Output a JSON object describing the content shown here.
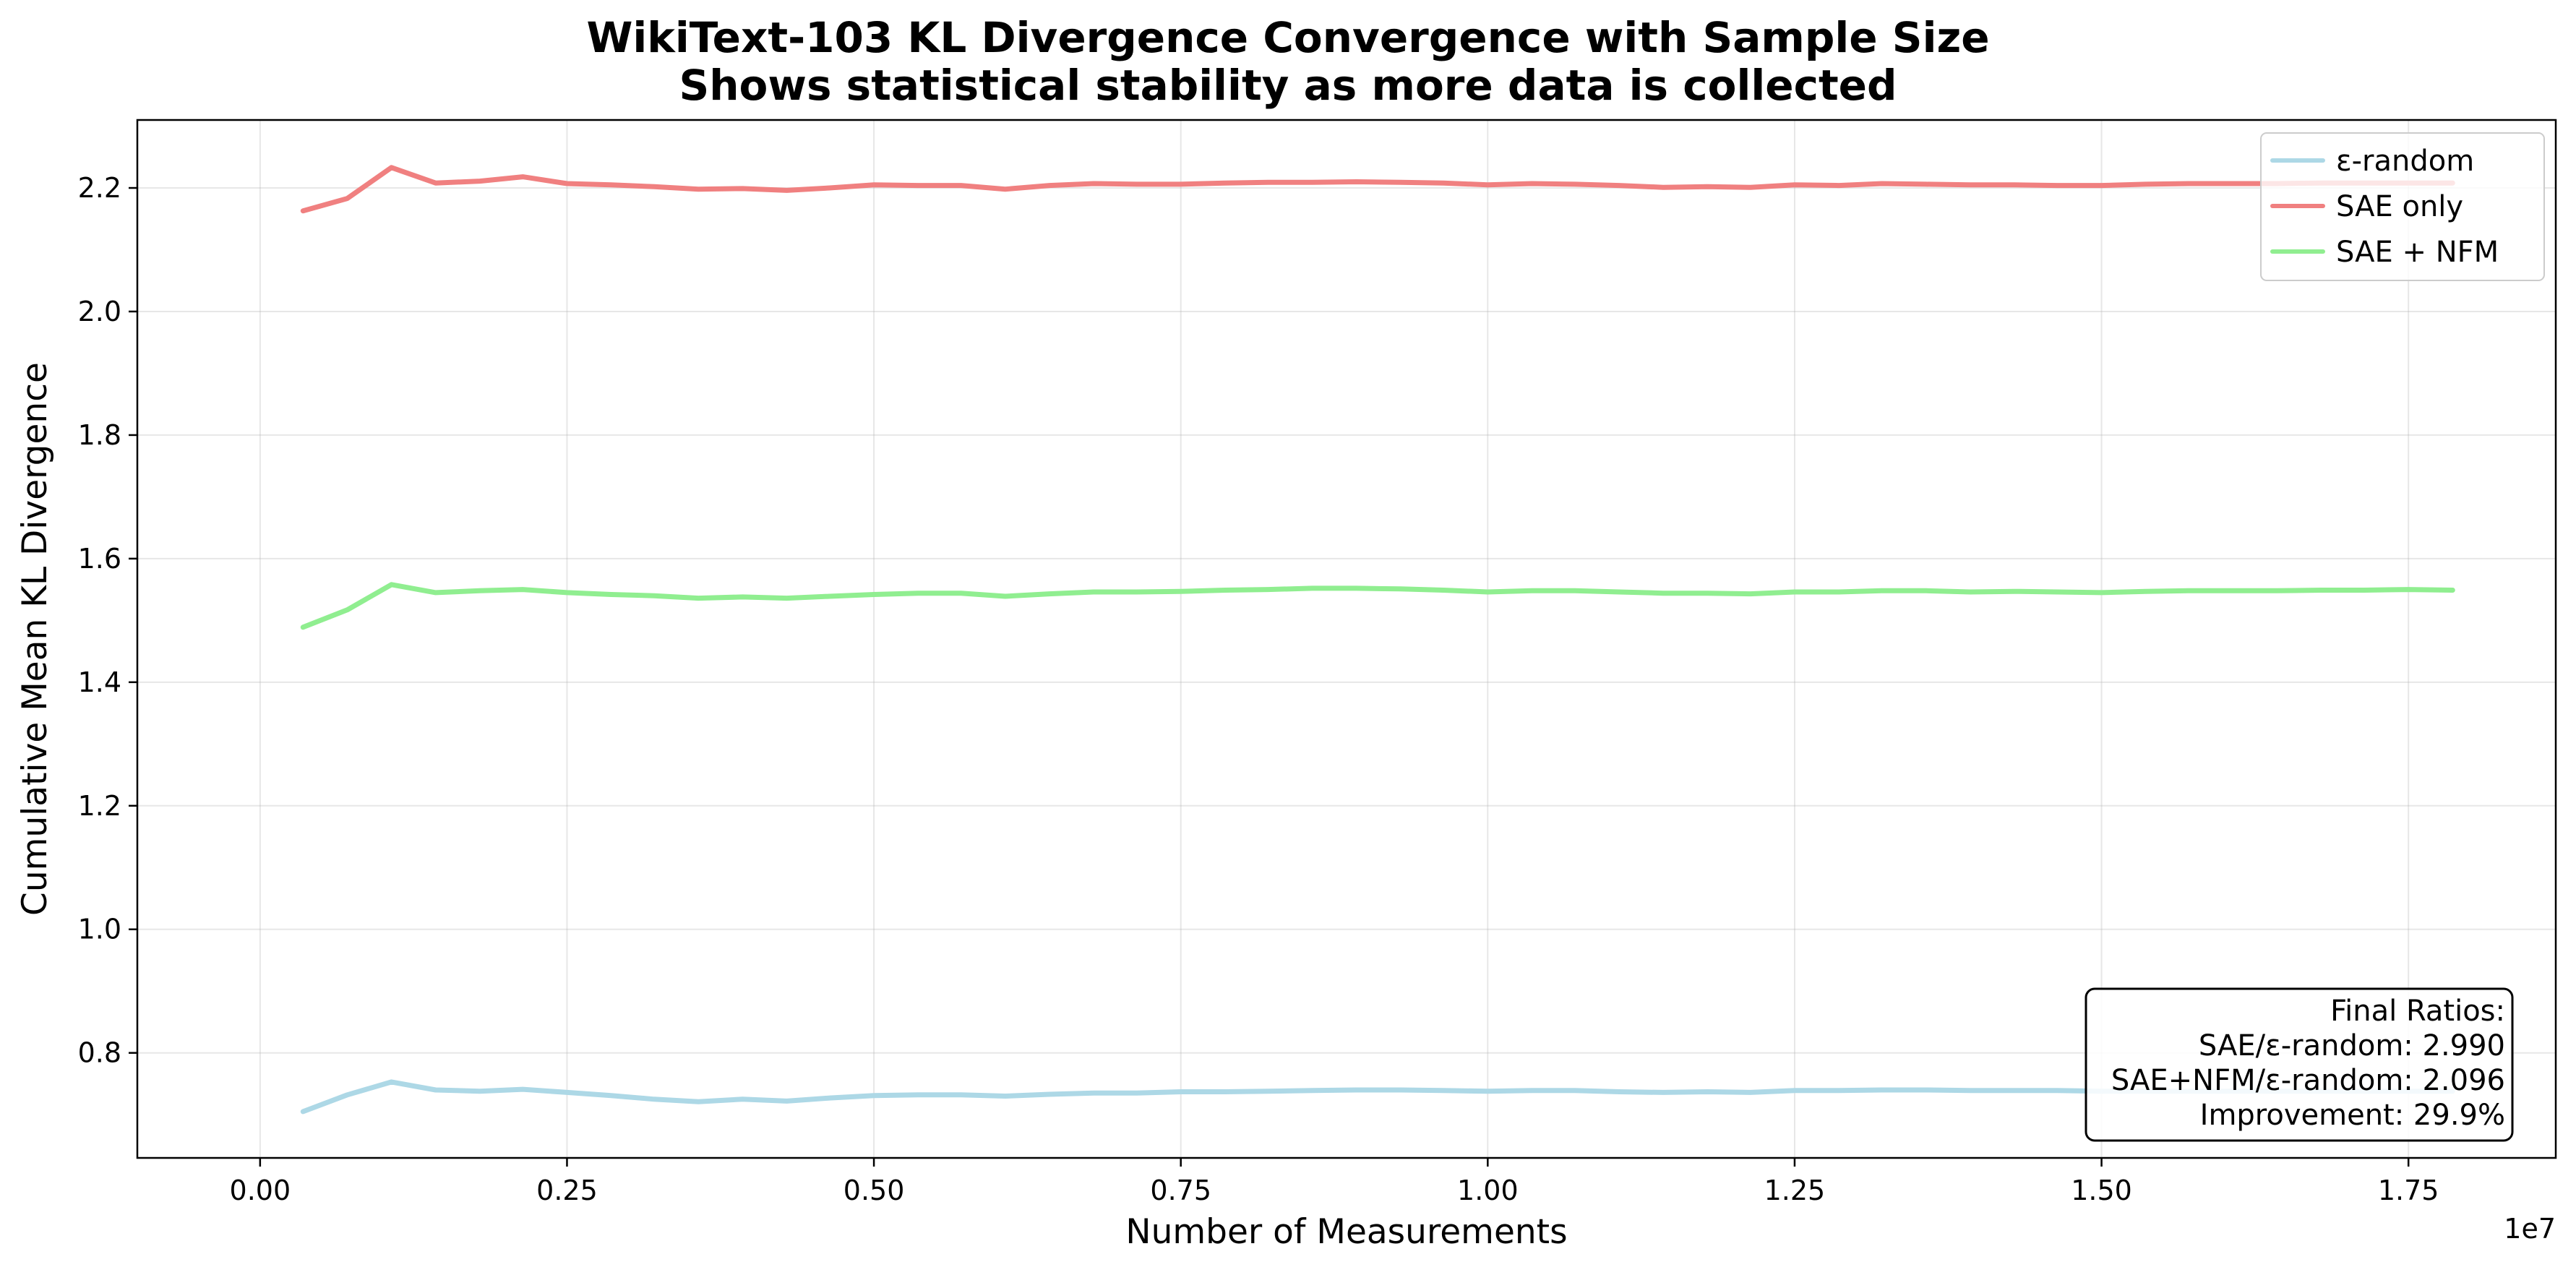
{
  "chart_data": {
    "type": "line",
    "title": "WikiText-103 KL Divergence Convergence with Sample Size",
    "subtitle": "Shows statistical stability as more data is collected",
    "xlabel": "Number of Measurements",
    "ylabel": "Cumulative Mean KL Divergence",
    "x_offset_label": "1e7",
    "xlim": [
      -0.1,
      1.87
    ],
    "ylim": [
      0.63,
      2.31
    ],
    "xticks": [
      0.0,
      0.25,
      0.5,
      0.75,
      1.0,
      1.25,
      1.5,
      1.75
    ],
    "xtick_labels": [
      "0.00",
      "0.25",
      "0.50",
      "0.75",
      "1.00",
      "1.25",
      "1.50",
      "1.75"
    ],
    "yticks": [
      0.8,
      1.0,
      1.2,
      1.4,
      1.6,
      1.8,
      2.0,
      2.2
    ],
    "ytick_labels": [
      "0.8",
      "1.0",
      "1.2",
      "1.4",
      "1.6",
      "1.8",
      "2.0",
      "2.2"
    ],
    "grid": true,
    "legend_position": "top-right",
    "x": [
      0.035,
      0.071,
      0.107,
      0.143,
      0.179,
      0.214,
      0.25,
      0.286,
      0.321,
      0.357,
      0.393,
      0.429,
      0.464,
      0.5,
      0.536,
      0.571,
      0.607,
      0.643,
      0.679,
      0.714,
      0.75,
      0.786,
      0.821,
      0.857,
      0.893,
      0.929,
      0.964,
      1.0,
      1.036,
      1.071,
      1.107,
      1.143,
      1.179,
      1.214,
      1.25,
      1.286,
      1.321,
      1.357,
      1.393,
      1.429,
      1.464,
      1.5,
      1.536,
      1.571,
      1.607,
      1.643,
      1.679,
      1.714,
      1.75,
      1.786
    ],
    "series": [
      {
        "name": "ε-random",
        "color": "#add8e6",
        "values": [
          0.705,
          0.732,
          0.753,
          0.74,
          0.738,
          0.741,
          0.736,
          0.731,
          0.725,
          0.721,
          0.725,
          0.722,
          0.727,
          0.731,
          0.732,
          0.732,
          0.73,
          0.733,
          0.735,
          0.735,
          0.737,
          0.737,
          0.738,
          0.739,
          0.74,
          0.74,
          0.739,
          0.738,
          0.739,
          0.739,
          0.737,
          0.736,
          0.737,
          0.736,
          0.739,
          0.739,
          0.74,
          0.74,
          0.739,
          0.739,
          0.739,
          0.738,
          0.738,
          0.738,
          0.738,
          0.738,
          0.738,
          0.738,
          0.738,
          0.738
        ]
      },
      {
        "name": "SAE only",
        "color": "#f08080",
        "values": [
          2.163,
          2.183,
          2.233,
          2.208,
          2.211,
          2.218,
          2.207,
          2.205,
          2.202,
          2.198,
          2.199,
          2.196,
          2.2,
          2.205,
          2.204,
          2.204,
          2.198,
          2.204,
          2.207,
          2.206,
          2.206,
          2.208,
          2.209,
          2.209,
          2.21,
          2.209,
          2.208,
          2.205,
          2.207,
          2.206,
          2.204,
          2.201,
          2.202,
          2.201,
          2.205,
          2.204,
          2.207,
          2.206,
          2.205,
          2.205,
          2.204,
          2.204,
          2.206,
          2.207,
          2.207,
          2.207,
          2.208,
          2.208,
          2.208,
          2.208
        ]
      },
      {
        "name": "SAE + NFM",
        "color": "#90ee90",
        "values": [
          1.489,
          1.517,
          1.558,
          1.545,
          1.548,
          1.55,
          1.545,
          1.542,
          1.54,
          1.536,
          1.538,
          1.536,
          1.539,
          1.542,
          1.544,
          1.544,
          1.539,
          1.543,
          1.546,
          1.546,
          1.547,
          1.549,
          1.55,
          1.552,
          1.552,
          1.551,
          1.549,
          1.546,
          1.548,
          1.548,
          1.546,
          1.544,
          1.544,
          1.543,
          1.546,
          1.546,
          1.548,
          1.548,
          1.546,
          1.547,
          1.546,
          1.545,
          1.547,
          1.548,
          1.548,
          1.548,
          1.549,
          1.549,
          1.55,
          1.549
        ]
      }
    ],
    "annotation": {
      "heading": "Final Ratios:",
      "line1": "SAE/ε-random: 2.990",
      "line2": "SAE+NFM/ε-random: 2.096",
      "line3": "Improvement: 29.9%"
    }
  }
}
